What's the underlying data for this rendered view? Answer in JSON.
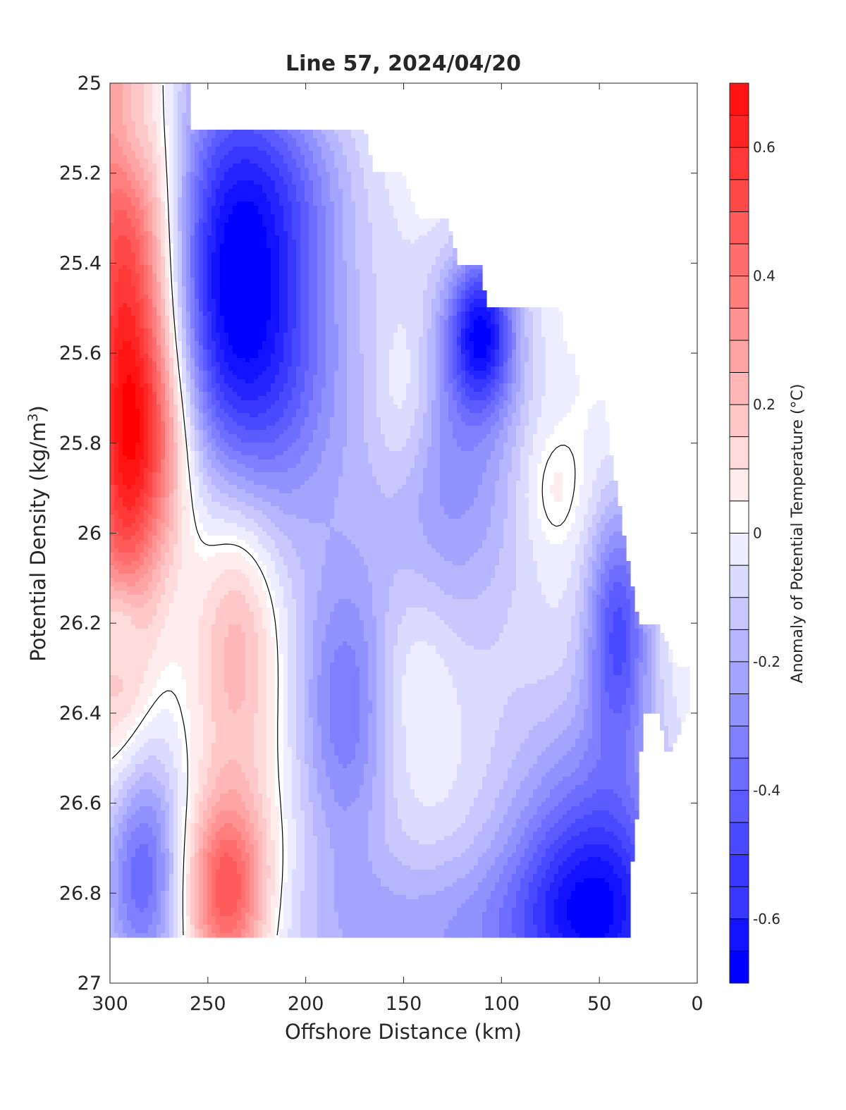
{
  "chart_data": {
    "type": "heatmap",
    "title": "Line 57, 2024/04/20",
    "xlabel": "Offshore Distance (km)",
    "ylabel": "Potential Density (kg/m",
    "ylabel_sup": "3",
    "ylabel_close": ")",
    "colorbar_label": "Anomaly of Potential Temperature (°C)",
    "xlim": [
      300,
      0
    ],
    "ylim": [
      25,
      27
    ],
    "x_reversed": true,
    "y_reversed": true,
    "x_ticks": [
      300,
      250,
      200,
      150,
      100,
      50,
      0
    ],
    "x_tick_labels": [
      "300",
      "250",
      "200",
      "150",
      "100",
      "50",
      "0"
    ],
    "y_ticks": [
      25,
      25.2,
      25.4,
      25.6,
      25.8,
      26,
      26.2,
      26.4,
      26.6,
      26.8,
      27
    ],
    "y_tick_labels": [
      "25",
      "25.2",
      "25.4",
      "25.6",
      "25.8",
      "26",
      "26.2",
      "26.4",
      "26.6",
      "26.8",
      "27"
    ],
    "colorbar_range": [
      -0.7,
      0.7
    ],
    "colorbar_step": 0.05,
    "colorbar_ticks": [
      -0.6,
      -0.4,
      -0.2,
      0,
      0.2,
      0.4,
      0.6
    ],
    "colorbar_tick_labels": [
      "-0.6",
      "-0.4",
      "-0.2",
      "0",
      "0.2",
      "0.4",
      "0.6"
    ],
    "colormap": {
      "negative": "#0000ff",
      "zero": "#ffffff",
      "positive": "#ff0000"
    },
    "contour_level": 0,
    "top_boundary": [
      [
        300,
        25
      ],
      [
        258,
        25
      ],
      [
        258,
        25.1
      ],
      [
        170,
        25.1
      ],
      [
        165,
        25.2
      ],
      [
        150,
        25.2
      ],
      [
        143,
        25.3
      ],
      [
        128,
        25.3
      ],
      [
        122,
        25.4
      ],
      [
        110,
        25.4
      ],
      [
        108,
        25.5
      ],
      [
        70,
        25.5
      ],
      [
        67,
        25.6
      ],
      [
        50,
        25.6
      ],
      [
        45,
        25.8
      ],
      [
        30,
        26.2
      ],
      [
        20,
        26.2
      ],
      [
        10,
        26.3
      ],
      [
        5,
        26.3
      ],
      [
        5,
        26.4
      ]
    ],
    "bottom_boundary": [
      [
        300,
        26.9
      ],
      [
        35,
        26.9
      ],
      [
        35,
        26.8
      ],
      [
        30,
        26.6
      ],
      [
        28,
        26.4
      ],
      [
        20,
        26.4
      ],
      [
        15,
        26.5
      ],
      [
        5,
        26.4
      ]
    ],
    "anomaly_features": [
      {
        "x": 295,
        "y": 25.55,
        "sx": 12,
        "sy": 0.6,
        "value": 0.5
      },
      {
        "x": 278,
        "y": 25.8,
        "sx": 15,
        "sy": 0.2,
        "value": 0.4
      },
      {
        "x": 275,
        "y": 25.4,
        "sx": 12,
        "sy": 0.25,
        "value": 0.25
      },
      {
        "x": 290,
        "y": 25.1,
        "sx": 8,
        "sy": 0.12,
        "value": -0.15
      },
      {
        "x": 240,
        "y": 25.4,
        "sx": 25,
        "sy": 0.35,
        "value": -0.5
      },
      {
        "x": 215,
        "y": 25.6,
        "sx": 30,
        "sy": 0.3,
        "value": -0.35
      },
      {
        "x": 205,
        "y": 25.2,
        "sx": 25,
        "sy": 0.15,
        "value": -0.15
      },
      {
        "x": 150,
        "y": 25.7,
        "sx": 12,
        "sy": 0.15,
        "value": 0.15
      },
      {
        "x": 110,
        "y": 25.55,
        "sx": 12,
        "sy": 0.12,
        "value": -0.55
      },
      {
        "x": 125,
        "y": 25.85,
        "sx": 30,
        "sy": 0.3,
        "value": -0.3
      },
      {
        "x": 75,
        "y": 25.9,
        "sx": 12,
        "sy": 0.1,
        "value": 0.1
      },
      {
        "x": 40,
        "y": 26.2,
        "sx": 12,
        "sy": 0.2,
        "value": -0.45
      },
      {
        "x": 180,
        "y": 26.4,
        "sx": 18,
        "sy": 0.25,
        "value": -0.35
      },
      {
        "x": 145,
        "y": 26.3,
        "sx": 15,
        "sy": 0.15,
        "value": 0.08
      },
      {
        "x": 235,
        "y": 26.2,
        "sx": 15,
        "sy": 0.25,
        "value": 0.25
      },
      {
        "x": 240,
        "y": 26.8,
        "sx": 15,
        "sy": 0.15,
        "value": 0.5
      },
      {
        "x": 285,
        "y": 26.75,
        "sx": 15,
        "sy": 0.2,
        "value": -0.45
      },
      {
        "x": 295,
        "y": 26.2,
        "sx": 8,
        "sy": 0.08,
        "value": -0.2
      },
      {
        "x": 50,
        "y": 26.85,
        "sx": 30,
        "sy": 0.18,
        "value": -0.55
      },
      {
        "x": 130,
        "y": 26.9,
        "sx": 60,
        "sy": 0.15,
        "value": -0.25
      },
      {
        "x": 60,
        "y": 26.55,
        "sx": 35,
        "sy": 0.2,
        "value": -0.2
      }
    ]
  }
}
